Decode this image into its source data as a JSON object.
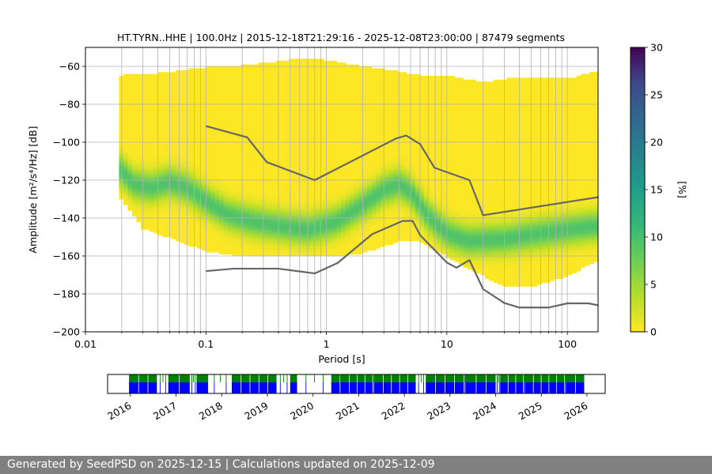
{
  "chart_data": [
    {
      "type": "heatmap",
      "title": "HT.TYRN..HHE | 100.0Hz | 2015-12-18T21:29:16 - 2025-12-08T23:00:00 | 87479 segments",
      "xlabel": "Period [s]",
      "ylabel": "Amplitude [m²/s⁴/Hz] [dB]",
      "x_scale": "log",
      "xlim": [
        0.01,
        180
      ],
      "ylim": [
        -200,
        -50
      ],
      "x_ticks": [
        0.01,
        0.1,
        1,
        10,
        100
      ],
      "x_tick_labels": [
        "0.01",
        "0.1",
        "1",
        "10",
        "100"
      ],
      "y_ticks": [
        -200,
        -180,
        -160,
        -140,
        -120,
        -100,
        -80,
        -60
      ],
      "y_tick_labels": [
        "−200",
        "−180",
        "−160",
        "−140",
        "−120",
        "−100",
        "−80",
        "−60"
      ],
      "grid": true,
      "colormap": "viridis_r",
      "colorbar": {
        "label": "[%]",
        "min": 0,
        "max": 30,
        "ticks": [
          0,
          5,
          10,
          15,
          20,
          25,
          30
        ],
        "tick_labels": [
          "0",
          "5",
          "10",
          "15",
          "20",
          "25",
          "30"
        ]
      },
      "psd_mode": [
        [
          0.02,
          -115
        ],
        [
          0.025,
          -122
        ],
        [
          0.035,
          -124
        ],
        [
          0.05,
          -121
        ],
        [
          0.07,
          -124
        ],
        [
          0.1,
          -131
        ],
        [
          0.15,
          -138
        ],
        [
          0.25,
          -142
        ],
        [
          0.4,
          -144
        ],
        [
          0.7,
          -146
        ],
        [
          1.2,
          -142
        ],
        [
          2,
          -133
        ],
        [
          3,
          -125
        ],
        [
          4,
          -122
        ],
        [
          5,
          -126
        ],
        [
          7,
          -139
        ],
        [
          10,
          -148
        ],
        [
          15,
          -152
        ],
        [
          30,
          -151
        ],
        [
          60,
          -148
        ],
        [
          100,
          -146
        ],
        [
          180,
          -144
        ]
      ],
      "psd_extent_lower": [
        [
          0.02,
          -130
        ],
        [
          0.03,
          -145
        ],
        [
          0.05,
          -150
        ],
        [
          0.1,
          -157
        ],
        [
          0.2,
          -160
        ],
        [
          1,
          -160
        ],
        [
          2,
          -158
        ],
        [
          4,
          -152
        ],
        [
          6,
          -152
        ],
        [
          10,
          -160
        ],
        [
          20,
          -170
        ],
        [
          30,
          -176
        ],
        [
          50,
          -176
        ],
        [
          100,
          -170
        ],
        [
          180,
          -162
        ]
      ],
      "psd_extent_upper": [
        [
          0.02,
          -65
        ],
        [
          0.04,
          -64
        ],
        [
          0.1,
          -61
        ],
        [
          0.2,
          -60
        ],
        [
          0.5,
          -57
        ],
        [
          0.8,
          -56
        ],
        [
          1.5,
          -59
        ],
        [
          3,
          -62
        ],
        [
          6,
          -65
        ],
        [
          10,
          -65
        ],
        [
          20,
          -69
        ],
        [
          40,
          -66
        ],
        [
          100,
          -67
        ],
        [
          180,
          -63
        ]
      ],
      "series": [
        {
          "type": "line",
          "color": "#666666",
          "points": [
            [
              0.1,
              -91.5
            ],
            [
              0.22,
              -97.4
            ],
            [
              0.32,
              -110.5
            ],
            [
              0.8,
              -120
            ],
            [
              3.8,
              -98
            ],
            [
              4.6,
              -96.5
            ],
            [
              6,
              -101
            ],
            [
              7.9,
              -113.5
            ],
            [
              15.4,
              -120
            ],
            [
              20,
              -138.5
            ],
            [
              180,
              -129
            ]
          ]
        },
        {
          "type": "line",
          "color": "#666666",
          "points": [
            [
              0.1,
              -168
            ],
            [
              0.17,
              -166.7
            ],
            [
              0.4,
              -166.7
            ],
            [
              0.8,
              -169.2
            ],
            [
              1.24,
              -163.7
            ],
            [
              2.4,
              -148.5
            ],
            [
              4.3,
              -141.5
            ],
            [
              5.2,
              -141.5
            ],
            [
              6,
              -149
            ],
            [
              10,
              -163.5
            ],
            [
              12,
              -166.2
            ],
            [
              15.4,
              -162.2
            ],
            [
              20,
              -177.5
            ],
            [
              30,
              -184.8
            ],
            [
              40,
              -187.2
            ],
            [
              70,
              -187.2
            ],
            [
              100,
              -185
            ],
            [
              150,
              -185
            ],
            [
              180,
              -186
            ]
          ]
        }
      ]
    },
    {
      "type": "timeline",
      "x_tick_labels": [
        "2016",
        "2017",
        "2018",
        "2019",
        "2020",
        "2021",
        "2022",
        "2023",
        "2024",
        "2025",
        "2026"
      ],
      "x_ticks": [
        2016,
        2017,
        2018,
        2019,
        2020,
        2021,
        2022,
        2023,
        2024,
        2025,
        2026
      ],
      "xlim": [
        2015.5,
        2026.4
      ],
      "colors": {
        "top": "#008000",
        "bottom": "#0000ff"
      },
      "data_start": 2015.97,
      "data_end": 2025.94,
      "gaps": [
        [
          2016.58,
          2016.83
        ],
        [
          2017.3,
          2017.45
        ],
        [
          2017.7,
          2018.22
        ],
        [
          2019.2,
          2019.5
        ],
        [
          2019.65,
          2020.4
        ],
        [
          2020.58,
          2020.62
        ],
        [
          2021.3,
          2021.35
        ],
        [
          2022.25,
          2022.47
        ],
        [
          2023.3,
          2023.35
        ],
        [
          2024.0,
          2024.1
        ],
        [
          2024.6,
          2024.65
        ],
        [
          2025.5,
          2025.55
        ]
      ]
    }
  ],
  "footer": {
    "text": "Generated by SeedPSD on 2025-12-15 | Calculations updated on 2025-12-09"
  }
}
